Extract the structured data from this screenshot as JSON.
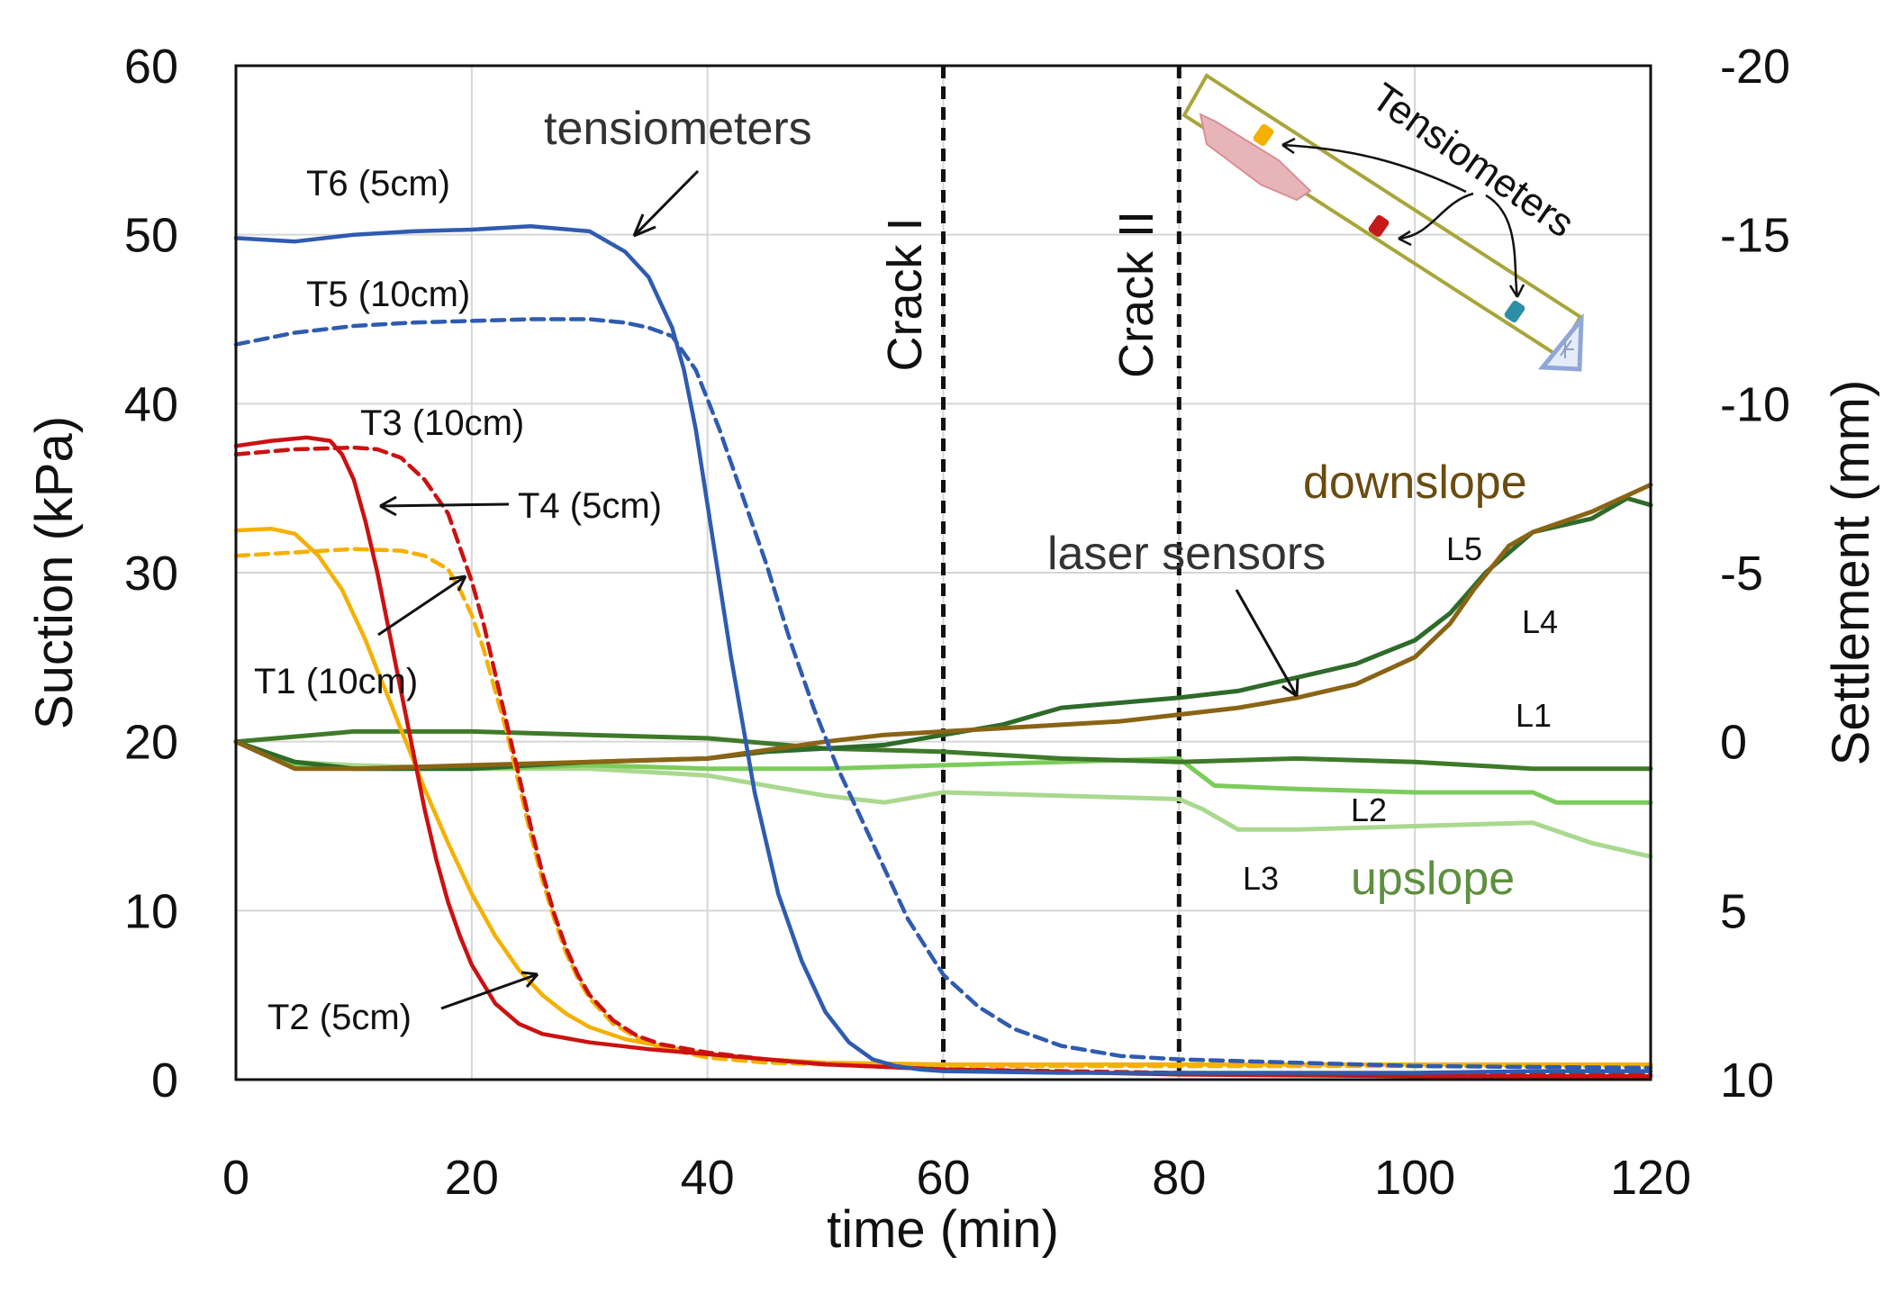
{
  "chart_data": {
    "type": "line",
    "xlabel": "time (min)",
    "ylabel_left": "Suction (kPa)",
    "ylabel_right": "Settlement (mm)",
    "xlim": [
      0,
      120
    ],
    "ylim_left": [
      0,
      60
    ],
    "ylim_right": [
      10,
      -20
    ],
    "x_ticks": [
      0,
      20,
      40,
      60,
      80,
      100,
      120
    ],
    "y_ticks_left": [
      0,
      10,
      20,
      30,
      40,
      50,
      60
    ],
    "y_ticks_right": [
      10,
      5,
      0,
      -5,
      -10,
      -15,
      -20
    ],
    "grid": true,
    "vlines": [
      {
        "x": 60,
        "label": "Crack I",
        "style": "dashed"
      },
      {
        "x": 80,
        "label": "Crack II",
        "style": "dashed"
      }
    ],
    "series": [
      {
        "name": "T6 (5cm)",
        "axis": "left",
        "color": "#2f5bb0",
        "dash": "solid",
        "x": [
          0,
          5,
          10,
          15,
          20,
          25,
          30,
          33,
          35,
          37,
          38,
          39,
          40,
          42,
          44,
          46,
          48,
          50,
          52,
          54,
          56,
          58,
          60,
          70,
          80,
          90,
          100,
          110,
          120
        ],
        "y": [
          49.8,
          49.6,
          50.0,
          50.2,
          50.3,
          50.5,
          50.2,
          49.0,
          47.5,
          44.5,
          42.0,
          38.5,
          34.0,
          25.0,
          17.0,
          11.0,
          7.0,
          4.0,
          2.2,
          1.2,
          0.8,
          0.6,
          0.5,
          0.4,
          0.4,
          0.4,
          0.4,
          0.5,
          0.5
        ]
      },
      {
        "name": "T5 (10cm)",
        "axis": "left",
        "color": "#2f5bb0",
        "dash": "dashed",
        "x": [
          0,
          5,
          10,
          15,
          20,
          25,
          30,
          33,
          35,
          37,
          39,
          41,
          43,
          45,
          47,
          49,
          51,
          53,
          55,
          57,
          60,
          63,
          66,
          70,
          75,
          80,
          90,
          100,
          120
        ],
        "y": [
          43.5,
          44.2,
          44.6,
          44.8,
          44.9,
          45.0,
          45.0,
          44.8,
          44.5,
          44.0,
          42.0,
          38.5,
          34.5,
          30.5,
          26.0,
          22.0,
          18.5,
          15.5,
          12.5,
          9.5,
          6.2,
          4.3,
          3.0,
          2.0,
          1.4,
          1.2,
          1.0,
          0.8,
          0.7
        ]
      },
      {
        "name": "T4 (5cm)",
        "axis": "left",
        "color": "#cc1111",
        "dash": "solid",
        "x": [
          0,
          3,
          6,
          8,
          9,
          10,
          11,
          12,
          13,
          14,
          15,
          16,
          17,
          18,
          19,
          20,
          22,
          24,
          26,
          30,
          35,
          40,
          45,
          50,
          60,
          80,
          100,
          120
        ],
        "y": [
          37.5,
          37.8,
          38.0,
          37.8,
          37.0,
          35.5,
          33.0,
          30.0,
          26.5,
          23.0,
          19.5,
          16.0,
          13.0,
          10.5,
          8.5,
          6.8,
          4.5,
          3.3,
          2.7,
          2.2,
          1.8,
          1.5,
          1.2,
          0.9,
          0.6,
          0.3,
          0.2,
          0.2
        ]
      },
      {
        "name": "T3 (10cm)",
        "axis": "left",
        "color": "#cc1111",
        "dash": "dashed",
        "x": [
          0,
          5,
          10,
          12,
          14,
          16,
          18,
          19,
          20,
          21,
          22,
          23,
          24,
          25,
          26,
          27,
          28,
          29,
          30,
          32,
          34,
          36,
          40,
          45,
          50,
          60,
          80,
          100,
          120
        ],
        "y": [
          37.0,
          37.3,
          37.4,
          37.3,
          36.8,
          35.5,
          33.5,
          31.5,
          29.5,
          27.0,
          24.0,
          21.0,
          18.0,
          15.0,
          12.2,
          9.8,
          7.8,
          6.2,
          5.0,
          3.5,
          2.6,
          2.1,
          1.6,
          1.2,
          0.9,
          0.6,
          0.4,
          0.3,
          0.3
        ]
      },
      {
        "name": "T2 (5cm)",
        "axis": "left",
        "color": "#f5b000",
        "dash": "solid",
        "x": [
          0,
          3,
          5,
          7,
          9,
          10,
          11,
          12,
          13,
          14,
          15,
          16,
          18,
          20,
          22,
          24,
          26,
          28,
          30,
          33,
          36,
          40,
          45,
          50,
          60,
          80,
          100,
          120
        ],
        "y": [
          32.5,
          32.6,
          32.3,
          31.0,
          29.0,
          27.5,
          26.0,
          24.2,
          22.5,
          20.7,
          19.0,
          17.2,
          14.0,
          11.0,
          8.5,
          6.5,
          5.0,
          3.9,
          3.1,
          2.4,
          2.0,
          1.5,
          1.2,
          1.0,
          0.9,
          0.9,
          0.9,
          0.9
        ]
      },
      {
        "name": "T1 (10cm)",
        "axis": "left",
        "color": "#f5b000",
        "dash": "dashed",
        "x": [
          0,
          5,
          10,
          14,
          16,
          18,
          19,
          20,
          21,
          22,
          23,
          24,
          25,
          26,
          27,
          28,
          29,
          30,
          32,
          34,
          36,
          40,
          45,
          50,
          60,
          80,
          100,
          120
        ],
        "y": [
          31.0,
          31.2,
          31.4,
          31.3,
          31.0,
          30.2,
          29.0,
          27.5,
          25.5,
          23.0,
          20.5,
          17.5,
          14.5,
          11.8,
          9.5,
          7.5,
          6.0,
          4.8,
          3.3,
          2.5,
          1.9,
          1.3,
          1.0,
          0.9,
          0.8,
          0.8,
          0.8,
          0.8
        ]
      },
      {
        "name": "L1",
        "axis": "right",
        "color": "#3f7a2a",
        "dash": "solid",
        "x": [
          0,
          10,
          20,
          30,
          40,
          50,
          60,
          70,
          80,
          90,
          100,
          110,
          120
        ],
        "y": [
          0.0,
          -0.3,
          -0.3,
          -0.2,
          -0.1,
          0.2,
          0.3,
          0.5,
          0.6,
          0.5,
          0.6,
          0.8,
          0.8
        ]
      },
      {
        "name": "L2",
        "axis": "right",
        "color": "#7ccc5a",
        "dash": "solid",
        "x": [
          0,
          5,
          10,
          20,
          30,
          40,
          50,
          60,
          70,
          80,
          83,
          90,
          100,
          110,
          112,
          120
        ],
        "y": [
          0.0,
          0.7,
          0.8,
          0.8,
          0.7,
          0.8,
          0.8,
          0.7,
          0.6,
          0.5,
          1.3,
          1.4,
          1.5,
          1.5,
          1.8,
          1.8
        ]
      },
      {
        "name": "L3",
        "axis": "right",
        "color": "#a9d98f",
        "dash": "solid",
        "x": [
          0,
          5,
          10,
          20,
          30,
          40,
          45,
          50,
          55,
          60,
          70,
          80,
          82,
          85,
          90,
          100,
          110,
          115,
          120
        ],
        "y": [
          0.0,
          0.6,
          0.7,
          0.8,
          0.8,
          1.0,
          1.3,
          1.6,
          1.8,
          1.5,
          1.6,
          1.7,
          2.0,
          2.6,
          2.6,
          2.5,
          2.4,
          3.0,
          3.4
        ]
      },
      {
        "name": "L4",
        "axis": "right",
        "color": "#2e6b2a",
        "dash": "solid",
        "x": [
          0,
          5,
          10,
          20,
          30,
          40,
          45,
          50,
          55,
          60,
          65,
          70,
          80,
          85,
          90,
          95,
          100,
          103,
          106,
          110,
          115,
          118,
          120
        ],
        "y": [
          0.0,
          0.6,
          0.8,
          0.8,
          0.6,
          0.5,
          0.3,
          0.2,
          0.1,
          -0.2,
          -0.5,
          -1.0,
          -1.3,
          -1.5,
          -1.9,
          -2.3,
          -3.0,
          -3.8,
          -5.0,
          -6.2,
          -6.6,
          -7.2,
          -7.0
        ]
      },
      {
        "name": "L5",
        "axis": "right",
        "color": "#8a6415",
        "dash": "solid",
        "x": [
          0,
          5,
          10,
          20,
          30,
          40,
          50,
          55,
          60,
          65,
          70,
          75,
          80,
          85,
          90,
          95,
          100,
          103,
          105,
          108,
          110,
          115,
          120
        ],
        "y": [
          0.0,
          0.8,
          0.8,
          0.7,
          0.6,
          0.5,
          0.0,
          -0.2,
          -0.3,
          -0.4,
          -0.5,
          -0.6,
          -0.8,
          -1.0,
          -1.3,
          -1.7,
          -2.5,
          -3.5,
          -4.5,
          -5.8,
          -6.2,
          -6.8,
          -7.6
        ]
      }
    ],
    "annotations": {
      "tensiometers": "tensiometers",
      "laser_sensors": "laser sensors",
      "downslope": "downslope",
      "upslope": "upslope",
      "inset_label": "Tensiometers"
    },
    "line_labels": {
      "T1": "T1 (10cm)",
      "T2": "T2 (5cm)",
      "T3": "T3 (10cm)",
      "T4": "T4 (5cm)",
      "T5": "T5 (10cm)",
      "T6": "T6 (5cm)",
      "L1": "L1",
      "L2": "L2",
      "L3": "L3",
      "L4": "L4",
      "L5": "L5"
    }
  }
}
